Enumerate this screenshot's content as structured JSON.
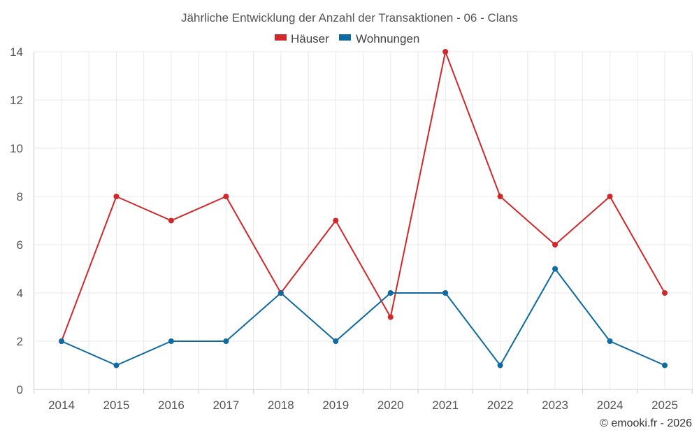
{
  "chart_data": {
    "type": "line",
    "title": "Jährliche Entwicklung der Anzahl der Transaktionen - 06 - Clans",
    "categories": [
      "2014",
      "2015",
      "2016",
      "2017",
      "2018",
      "2019",
      "2020",
      "2021",
      "2022",
      "2023",
      "2024",
      "2025"
    ],
    "series": [
      {
        "name": "Häuser",
        "color": "#d0282b",
        "values": [
          2,
          8,
          7,
          8,
          4,
          7,
          3,
          14,
          8,
          6,
          8,
          4
        ]
      },
      {
        "name": "Wohnungen",
        "color": "#0e6aa0",
        "values": [
          2,
          1,
          2,
          2,
          4,
          2,
          4,
          4,
          1,
          5,
          2,
          1
        ]
      }
    ],
    "xlabel": "",
    "ylabel": "",
    "ylim": [
      0,
      14
    ],
    "yticks": [
      0,
      2,
      4,
      6,
      8,
      10,
      12,
      14
    ],
    "grid": true,
    "legend_position": "top-center"
  },
  "credit": "© emooki.fr - 2026"
}
